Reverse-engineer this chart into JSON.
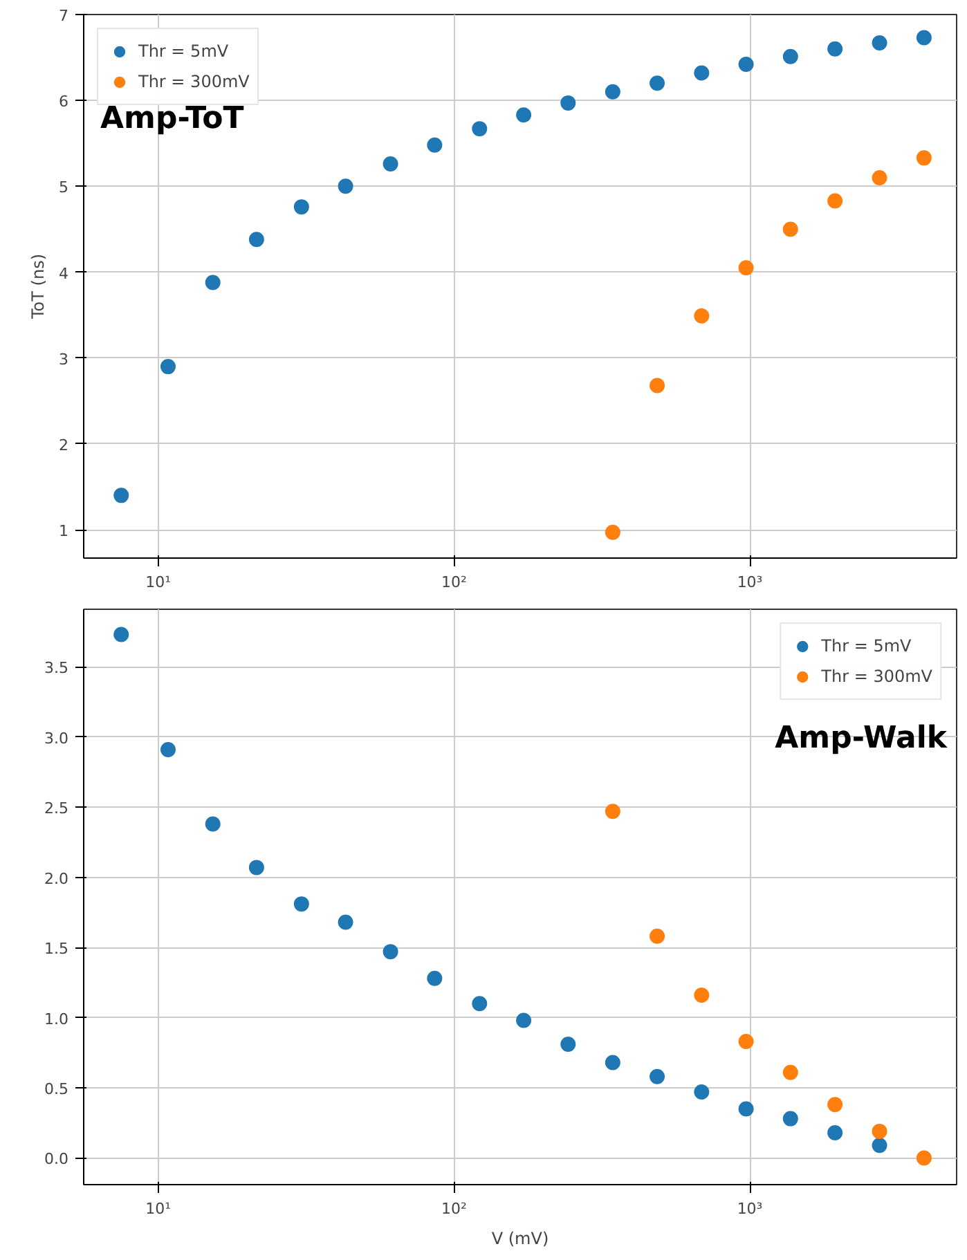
{
  "chart_data": [
    {
      "type": "scatter",
      "ylabel": "ToT (ns)",
      "annotations": [
        "Amp-ToT"
      ],
      "log": "x",
      "grid": true,
      "legend": "top left",
      "marker": "circle",
      "xlim": [
        5.6,
        5000
      ],
      "xticks": [
        {
          "value": 10,
          "label": "10¹"
        },
        {
          "value": 100,
          "label": "10²"
        },
        {
          "value": 1000,
          "label": "10³"
        }
      ],
      "ylim": [
        0.67,
        7
      ],
      "yticks": [
        1,
        2,
        3,
        4,
        5,
        6,
        7
      ],
      "series": [
        {
          "name": "Thr = 5mV",
          "color": "#1f77b4",
          "x": [
            7.5,
            10.8,
            15.3,
            21.5,
            30.5,
            43,
            61,
            86,
            122,
            172,
            243,
            344,
            486,
            687,
            971,
            1372,
            1940,
            2744,
            3880
          ],
          "values": [
            1.4,
            2.9,
            3.88,
            4.38,
            4.76,
            5.0,
            5.26,
            5.48,
            5.67,
            5.83,
            5.97,
            6.1,
            6.2,
            6.32,
            6.42,
            6.51,
            6.6,
            6.67,
            6.73
          ]
        },
        {
          "name": "Thr = 300mV",
          "color": "#ff7f0e",
          "x": [
            344,
            486,
            687,
            971,
            1372,
            1940,
            2744,
            3880
          ],
          "values": [
            0.97,
            2.68,
            3.49,
            4.05,
            4.5,
            4.83,
            5.1,
            5.33
          ]
        }
      ]
    },
    {
      "type": "scatter",
      "xlabel": "V (mV)",
      "annotations": [
        "Amp-Walk"
      ],
      "log": "x",
      "grid": true,
      "legend": "top right",
      "marker": "circle",
      "xlim": [
        5.6,
        5000
      ],
      "xticks": [
        {
          "value": 10,
          "label": "10¹"
        },
        {
          "value": 100,
          "label": "10²"
        },
        {
          "value": 1000,
          "label": "10³"
        }
      ],
      "ylim": [
        -0.19,
        3.91
      ],
      "yticks": [
        {
          "value": 0,
          "label": "0.0"
        },
        {
          "value": 0.5,
          "label": "0.5"
        },
        {
          "value": 1,
          "label": "1.0"
        },
        {
          "value": 1.5,
          "label": "1.5"
        },
        {
          "value": 2,
          "label": "2.0"
        },
        {
          "value": 2.5,
          "label": "2.5"
        },
        {
          "value": 3,
          "label": "3.0"
        },
        {
          "value": 3.5,
          "label": "3.5"
        }
      ],
      "series": [
        {
          "name": "Thr = 5mV",
          "color": "#1f77b4",
          "x": [
            7.5,
            10.8,
            15.3,
            21.5,
            30.5,
            43,
            61,
            86,
            122,
            172,
            243,
            344,
            486,
            687,
            971,
            1372,
            1940,
            2744
          ],
          "values": [
            3.73,
            2.91,
            2.38,
            2.07,
            1.81,
            1.68,
            1.47,
            1.28,
            1.1,
            0.98,
            0.81,
            0.68,
            0.58,
            0.47,
            0.35,
            0.28,
            0.18,
            0.09
          ]
        },
        {
          "name": "Thr = 300mV",
          "color": "#ff7f0e",
          "x": [
            344,
            486,
            687,
            971,
            1372,
            1940,
            2744,
            3880
          ],
          "values": [
            2.47,
            1.58,
            1.16,
            0.83,
            0.61,
            0.38,
            0.19,
            0.0
          ]
        }
      ]
    }
  ]
}
